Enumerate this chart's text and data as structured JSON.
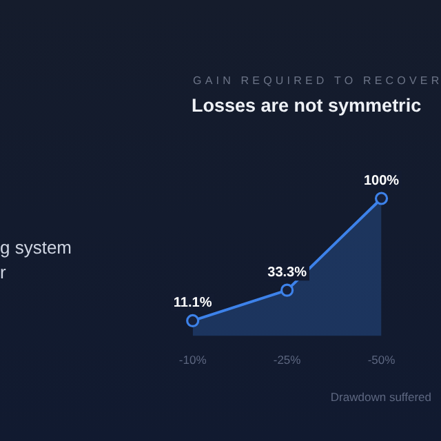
{
  "chart_data": {
    "type": "area",
    "subtitle": "GAIN REQUIRED TO RECOVER",
    "title": "Losses are not symmetric",
    "xlabel": "Drawdown suffered",
    "categories": [
      "-10%",
      "-25%",
      "-50%"
    ],
    "series": [
      {
        "color": "#3d82ea",
        "values": [
          11.1,
          33.3,
          100
        ],
        "value_labels": [
          "11.1%",
          "33.3%",
          "100%"
        ]
      }
    ],
    "marker": "circle",
    "grid": false,
    "legend": false,
    "tick_labels": "x",
    "annotations": [
      "g system",
      "r"
    ]
  }
}
